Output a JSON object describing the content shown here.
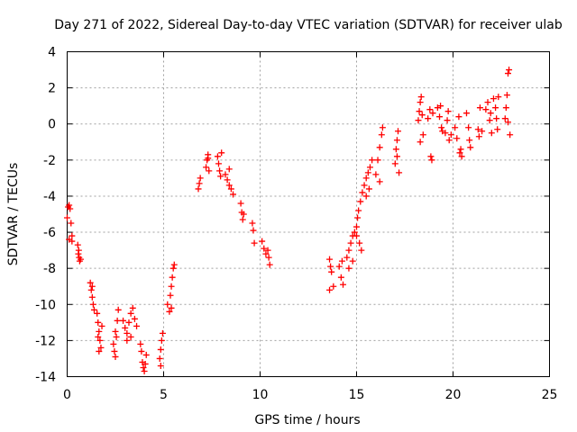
{
  "chart_data": {
    "type": "scatter",
    "title": "Day 271 of 2022, Sidereal Day-to-day VTEC variation (SDTVAR) for receiver ulab",
    "xlabel": "GPS time / hours",
    "ylabel": "SDTVAR / TECUs",
    "xlim": [
      0,
      25
    ],
    "ylim": [
      -14,
      4
    ],
    "xticks": [
      "0",
      "5",
      "10",
      "15",
      "20",
      "25"
    ],
    "yticks": [
      "-14",
      "-12",
      "-10",
      "-8",
      "-6",
      "-4",
      "-2",
      "0",
      "2",
      "4"
    ],
    "grid": true,
    "legend": "none",
    "marker": "plus",
    "color": "#ff0000",
    "series": [
      {
        "name": "SDTVAR",
        "points": [
          [
            0.0,
            -5.2
          ],
          [
            0.05,
            -4.6
          ],
          [
            0.1,
            -4.5
          ],
          [
            0.15,
            -4.7
          ],
          [
            0.2,
            -5.5
          ],
          [
            0.25,
            -6.2
          ],
          [
            0.1,
            -6.4
          ],
          [
            0.25,
            -6.5
          ],
          [
            0.55,
            -6.7
          ],
          [
            0.6,
            -7.0
          ],
          [
            0.62,
            -7.4
          ],
          [
            0.65,
            -7.6
          ],
          [
            0.58,
            -7.2
          ],
          [
            0.7,
            -7.5
          ],
          [
            1.2,
            -8.8
          ],
          [
            1.25,
            -9.2
          ],
          [
            1.3,
            -9.6
          ],
          [
            1.35,
            -10.0
          ],
          [
            1.4,
            -10.3
          ],
          [
            1.3,
            -9.0
          ],
          [
            1.55,
            -10.5
          ],
          [
            1.6,
            -11.0
          ],
          [
            1.65,
            -11.5
          ],
          [
            1.7,
            -12.0
          ],
          [
            1.75,
            -12.4
          ],
          [
            1.8,
            -11.2
          ],
          [
            1.65,
            -12.6
          ],
          [
            1.6,
            -11.8
          ],
          [
            2.4,
            -12.2
          ],
          [
            2.45,
            -12.6
          ],
          [
            2.5,
            -12.9
          ],
          [
            2.55,
            -11.8
          ],
          [
            2.6,
            -10.9
          ],
          [
            2.65,
            -10.3
          ],
          [
            2.5,
            -11.5
          ],
          [
            2.9,
            -10.9
          ],
          [
            3.0,
            -11.3
          ],
          [
            3.1,
            -11.6
          ],
          [
            3.2,
            -11.0
          ],
          [
            3.3,
            -10.5
          ],
          [
            3.4,
            -10.2
          ],
          [
            3.5,
            -10.8
          ],
          [
            3.6,
            -11.2
          ],
          [
            3.3,
            -11.8
          ],
          [
            3.1,
            -12.0
          ],
          [
            3.8,
            -12.2
          ],
          [
            3.85,
            -12.6
          ],
          [
            3.9,
            -13.2
          ],
          [
            3.95,
            -13.5
          ],
          [
            4.0,
            -13.7
          ],
          [
            4.05,
            -13.3
          ],
          [
            4.1,
            -12.8
          ],
          [
            4.8,
            -13.0
          ],
          [
            4.85,
            -12.5
          ],
          [
            4.9,
            -12.0
          ],
          [
            4.95,
            -11.6
          ],
          [
            4.85,
            -13.4
          ],
          [
            5.2,
            -10.0
          ],
          [
            5.3,
            -10.4
          ],
          [
            5.35,
            -9.5
          ],
          [
            5.4,
            -9.0
          ],
          [
            5.45,
            -8.5
          ],
          [
            5.5,
            -8.0
          ],
          [
            5.55,
            -7.8
          ],
          [
            5.4,
            -10.2
          ],
          [
            6.8,
            -3.6
          ],
          [
            6.85,
            -3.3
          ],
          [
            6.9,
            -3.0
          ],
          [
            7.2,
            -2.4
          ],
          [
            7.25,
            -2.0
          ],
          [
            7.3,
            -1.7
          ],
          [
            7.35,
            -2.6
          ],
          [
            7.3,
            -1.9
          ],
          [
            7.8,
            -1.8
          ],
          [
            7.85,
            -2.2
          ],
          [
            7.9,
            -2.6
          ],
          [
            7.95,
            -2.9
          ],
          [
            8.0,
            -1.6
          ],
          [
            8.2,
            -2.8
          ],
          [
            8.3,
            -3.1
          ],
          [
            8.4,
            -3.4
          ],
          [
            8.5,
            -3.6
          ],
          [
            8.6,
            -3.9
          ],
          [
            8.4,
            -2.5
          ],
          [
            9.0,
            -4.4
          ],
          [
            9.05,
            -4.9
          ],
          [
            9.1,
            -5.3
          ],
          [
            9.15,
            -5.0
          ],
          [
            9.6,
            -5.5
          ],
          [
            9.65,
            -5.9
          ],
          [
            9.7,
            -6.6
          ],
          [
            10.1,
            -6.5
          ],
          [
            10.2,
            -6.9
          ],
          [
            10.3,
            -7.2
          ],
          [
            10.4,
            -7.0
          ],
          [
            10.5,
            -7.8
          ],
          [
            10.45,
            -7.4
          ],
          [
            13.6,
            -7.5
          ],
          [
            13.65,
            -7.9
          ],
          [
            13.7,
            -8.2
          ],
          [
            13.6,
            -9.2
          ],
          [
            13.8,
            -9.0
          ],
          [
            14.1,
            -7.9
          ],
          [
            14.2,
            -8.5
          ],
          [
            14.3,
            -8.9
          ],
          [
            14.25,
            -7.6
          ],
          [
            14.5,
            -7.4
          ],
          [
            14.6,
            -7.0
          ],
          [
            14.7,
            -6.6
          ],
          [
            14.8,
            -6.2
          ],
          [
            14.9,
            -6.0
          ],
          [
            14.6,
            -8.0
          ],
          [
            14.8,
            -7.6
          ],
          [
            15.0,
            -5.7
          ],
          [
            15.05,
            -5.2
          ],
          [
            15.1,
            -4.8
          ],
          [
            15.2,
            -4.3
          ],
          [
            15.3,
            -3.8
          ],
          [
            15.15,
            -6.6
          ],
          [
            15.25,
            -7.0
          ],
          [
            15.0,
            -6.2
          ],
          [
            15.4,
            -3.4
          ],
          [
            15.5,
            -3.0
          ],
          [
            15.6,
            -2.7
          ],
          [
            15.7,
            -2.4
          ],
          [
            15.8,
            -2.0
          ],
          [
            15.65,
            -3.6
          ],
          [
            15.5,
            -4.0
          ],
          [
            16.0,
            -2.8
          ],
          [
            16.1,
            -2.0
          ],
          [
            16.2,
            -1.3
          ],
          [
            16.3,
            -0.6
          ],
          [
            16.35,
            -0.2
          ],
          [
            16.2,
            -3.2
          ],
          [
            17.0,
            -2.2
          ],
          [
            17.05,
            -1.4
          ],
          [
            17.1,
            -0.9
          ],
          [
            17.15,
            -0.4
          ],
          [
            17.2,
            -2.7
          ],
          [
            17.1,
            -1.8
          ],
          [
            18.2,
            0.2
          ],
          [
            18.25,
            0.7
          ],
          [
            18.3,
            1.2
          ],
          [
            18.35,
            1.5
          ],
          [
            18.4,
            0.5
          ],
          [
            18.45,
            -0.6
          ],
          [
            18.3,
            -1.0
          ],
          [
            18.7,
            0.3
          ],
          [
            18.8,
            0.8
          ],
          [
            18.85,
            -1.8
          ],
          [
            18.9,
            -2.0
          ],
          [
            18.95,
            0.6
          ],
          [
            19.2,
            0.9
          ],
          [
            19.3,
            0.4
          ],
          [
            19.4,
            -0.2
          ],
          [
            19.45,
            -0.4
          ],
          [
            19.35,
            1.0
          ],
          [
            19.6,
            -0.5
          ],
          [
            19.7,
            0.2
          ],
          [
            19.8,
            -0.9
          ],
          [
            19.9,
            -0.6
          ],
          [
            19.75,
            0.7
          ],
          [
            20.1,
            -0.2
          ],
          [
            20.2,
            -0.8
          ],
          [
            20.3,
            0.4
          ],
          [
            20.4,
            -1.4
          ],
          [
            20.45,
            -1.8
          ],
          [
            20.35,
            -1.6
          ],
          [
            20.7,
            0.6
          ],
          [
            20.8,
            -0.2
          ],
          [
            20.9,
            -1.3
          ],
          [
            20.85,
            -0.9
          ],
          [
            21.3,
            -0.3
          ],
          [
            21.35,
            -0.7
          ],
          [
            21.4,
            0.9
          ],
          [
            21.5,
            -0.4
          ],
          [
            21.7,
            0.8
          ],
          [
            21.8,
            1.2
          ],
          [
            21.9,
            0.2
          ],
          [
            22.0,
            -0.5
          ],
          [
            21.95,
            0.6
          ],
          [
            22.1,
            1.4
          ],
          [
            22.2,
            0.9
          ],
          [
            22.25,
            0.3
          ],
          [
            22.3,
            -0.3
          ],
          [
            22.35,
            1.5
          ],
          [
            22.7,
            0.3
          ],
          [
            22.75,
            0.9
          ],
          [
            22.8,
            1.6
          ],
          [
            22.85,
            2.8
          ],
          [
            22.9,
            3.0
          ],
          [
            22.95,
            -0.6
          ],
          [
            22.85,
            0.1
          ]
        ]
      }
    ]
  }
}
